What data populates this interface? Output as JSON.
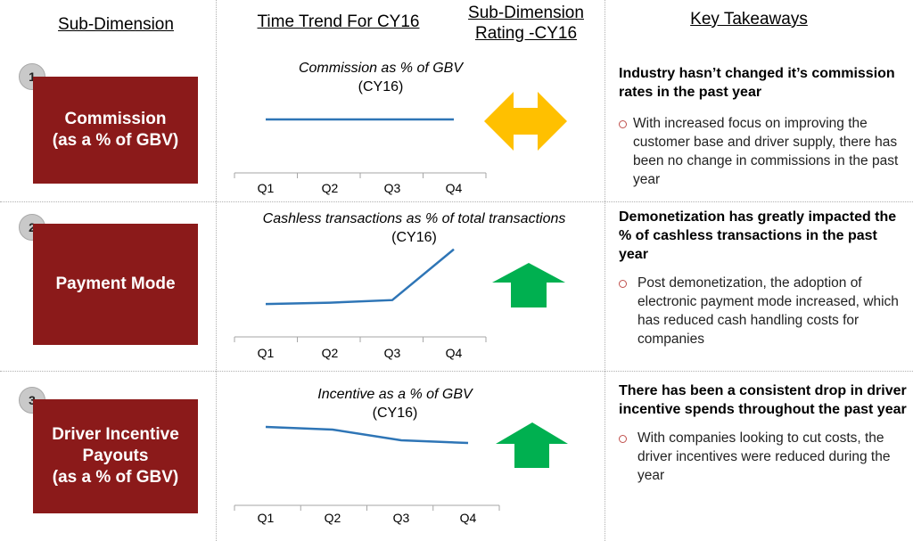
{
  "headers": {
    "sub_dimension": "Sub-Dimension",
    "time_trend": "Time Trend For CY16",
    "rating_line1": "Sub-Dimension",
    "rating_line2": "Rating -CY16",
    "takeaways": "Key Takeaways"
  },
  "colors": {
    "dimension_box": "#8b1a1a",
    "line_series": "#2e75b6",
    "arrow_neutral": "#ffc000",
    "arrow_up": "#00b050"
  },
  "rows": [
    {
      "number": "1",
      "dimension_line1": "Commission",
      "dimension_line2": "(as a % of GBV)",
      "dimension_line3": "",
      "rating": "neutral",
      "rating_icon": "double-horizontal-arrow-icon",
      "takeaway_head": "Industry hasn’t changed it’s commission rates in the past year",
      "takeaway_bullet": "With increased focus on improving the customer base and driver supply, there has been no change in commissions in the past year"
    },
    {
      "number": "2",
      "dimension_line1": "Payment Mode",
      "dimension_line2": "",
      "dimension_line3": "",
      "rating": "up",
      "rating_icon": "up-arrow-icon",
      "takeaway_head": "Demonetization has greatly impacted the % of cashless transactions in the past year",
      "takeaway_bullet": "Post demonetization, the adoption of electronic payment mode increased, which has reduced cash handling costs for companies"
    },
    {
      "number": "3",
      "dimension_line1": "Driver Incentive",
      "dimension_line2": "Payouts",
      "dimension_line3": "(as a % of GBV)",
      "rating": "up",
      "rating_icon": "up-arrow-icon",
      "takeaway_head": "There has been a consistent drop in driver incentive spends throughout the past year",
      "takeaway_bullet": "With companies looking to cut costs, the driver incentives were reduced during the year"
    }
  ],
  "chart_data": [
    {
      "type": "line",
      "title": "Commission as % of GBV",
      "subtitle": "(CY16)",
      "categories": [
        "Q1",
        "Q2",
        "Q3",
        "Q4"
      ],
      "series": [
        {
          "values": [
            0.5,
            0.5,
            0.5,
            0.5
          ]
        }
      ],
      "ylim": [
        0,
        1
      ],
      "grid": false,
      "note": ""
    },
    {
      "type": "line",
      "title": "Cashless transactions as % of  total transactions",
      "subtitle": "(CY16)",
      "categories": [
        "Q1",
        "Q2",
        "Q3",
        "Q4"
      ],
      "series": [
        {
          "values": [
            0.12,
            0.14,
            0.18,
            0.95
          ]
        }
      ],
      "ylim": [
        0,
        1
      ],
      "grid": false
    },
    {
      "type": "line",
      "title": "Incentive as a % of GBV",
      "subtitle": "(CY16)",
      "categories": [
        "Q1",
        "Q2",
        "Q3",
        "Q4"
      ],
      "series": [
        {
          "values": [
            0.85,
            0.8,
            0.6,
            0.55
          ]
        }
      ],
      "ylim": [
        0,
        1
      ],
      "grid": false
    }
  ]
}
